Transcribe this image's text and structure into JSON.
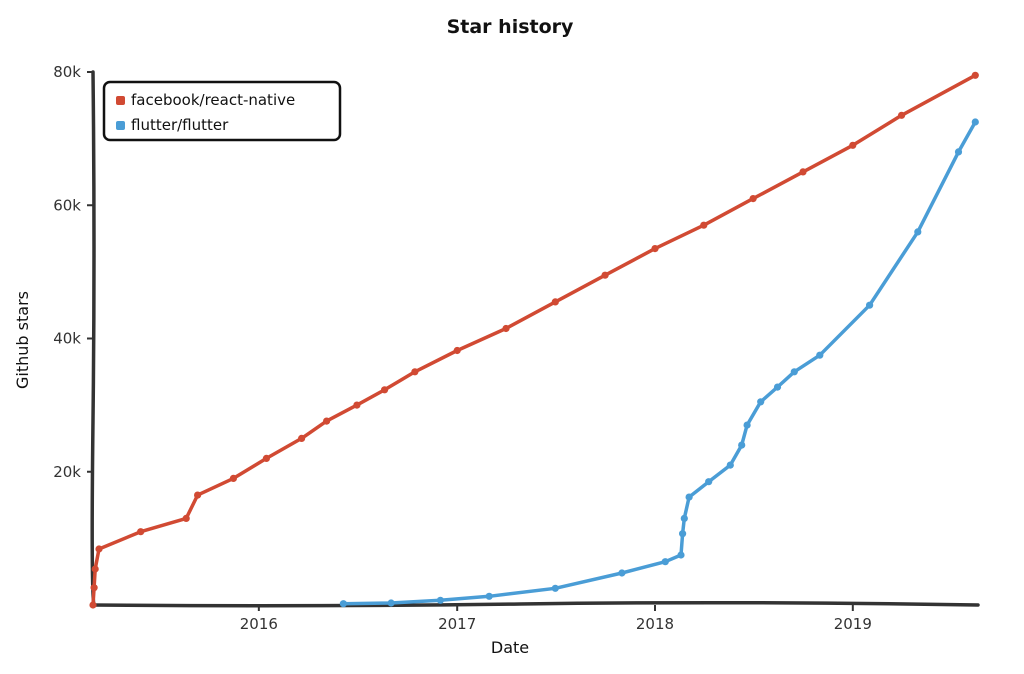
{
  "chart_data": {
    "type": "line",
    "title": "Star history",
    "xlabel": "Date",
    "ylabel": "Github stars",
    "xlim": [
      "2015-03-01",
      "2019-08-20"
    ],
    "ylim": [
      0,
      80000
    ],
    "x_ticks": [
      {
        "label": "2016",
        "date": "2016-01-01"
      },
      {
        "label": "2017",
        "date": "2017-01-01"
      },
      {
        "label": "2018",
        "date": "2018-01-01"
      },
      {
        "label": "2019",
        "date": "2019-01-01"
      }
    ],
    "y_ticks": [
      {
        "label": "20k",
        "value": 20000
      },
      {
        "label": "40k",
        "value": 40000
      },
      {
        "label": "60k",
        "value": 60000
      },
      {
        "label": "80k",
        "value": 80000
      }
    ],
    "legend_position": "top-left",
    "grid": false,
    "series": [
      {
        "name": "facebook/react-native",
        "color": "#d14a33",
        "points": [
          [
            "2015-03-01",
            0
          ],
          [
            "2015-03-03",
            2600
          ],
          [
            "2015-03-05",
            5400
          ],
          [
            "2015-03-12",
            8400
          ],
          [
            "2015-05-28",
            11000
          ],
          [
            "2015-08-20",
            13000
          ],
          [
            "2015-09-10",
            16500
          ],
          [
            "2015-11-15",
            19000
          ],
          [
            "2016-01-15",
            22000
          ],
          [
            "2016-03-20",
            25000
          ],
          [
            "2016-05-05",
            27600
          ],
          [
            "2016-06-30",
            30000
          ],
          [
            "2016-08-20",
            32300
          ],
          [
            "2016-10-15",
            35000
          ],
          [
            "2017-01-01",
            38200
          ],
          [
            "2017-04-01",
            41500
          ],
          [
            "2017-07-01",
            45500
          ],
          [
            "2017-10-01",
            49500
          ],
          [
            "2018-01-01",
            53500
          ],
          [
            "2018-04-01",
            57000
          ],
          [
            "2018-07-01",
            61000
          ],
          [
            "2018-10-01",
            65000
          ],
          [
            "2019-01-01",
            69000
          ],
          [
            "2019-04-01",
            73500
          ],
          [
            "2019-08-15",
            79500
          ]
        ]
      },
      {
        "name": "flutter/flutter",
        "color": "#4a9dd6",
        "points": [
          [
            "2016-06-05",
            200
          ],
          [
            "2016-09-01",
            300
          ],
          [
            "2016-12-01",
            700
          ],
          [
            "2017-03-01",
            1300
          ],
          [
            "2017-07-01",
            2500
          ],
          [
            "2017-11-01",
            4800
          ],
          [
            "2018-01-20",
            6500
          ],
          [
            "2018-02-18",
            7500
          ],
          [
            "2018-02-21",
            10700
          ],
          [
            "2018-02-24",
            13000
          ],
          [
            "2018-03-05",
            16200
          ],
          [
            "2018-04-10",
            18500
          ],
          [
            "2018-05-20",
            21000
          ],
          [
            "2018-06-10",
            24000
          ],
          [
            "2018-06-20",
            27000
          ],
          [
            "2018-07-15",
            30500
          ],
          [
            "2018-08-15",
            32700
          ],
          [
            "2018-09-15",
            35000
          ],
          [
            "2018-11-01",
            37500
          ],
          [
            "2019-02-01",
            45000
          ],
          [
            "2019-05-01",
            56000
          ],
          [
            "2019-07-15",
            68000
          ],
          [
            "2019-08-15",
            72500
          ]
        ]
      }
    ]
  }
}
